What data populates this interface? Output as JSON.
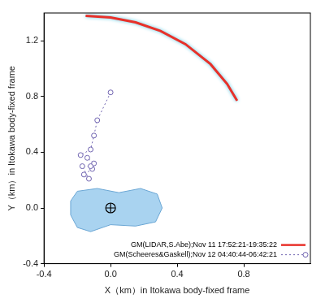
{
  "chart_data": {
    "type": "scatter",
    "x_label": "X（km）in Itokawa body-fixed frame",
    "y_label": "Y（km）in Itokawa body-fixed frame",
    "xlim": [
      -0.4,
      1.2
    ],
    "ylim": [
      -0.4,
      1.4
    ],
    "xticks": [
      -0.4,
      {
        "value": 0,
        "label": "0.0"
      },
      0.4,
      0.8
    ],
    "yticks": [
      -0.4,
      {
        "value": 0,
        "label": "0.0"
      },
      0.4,
      0.8,
      1.2
    ],
    "grid": false,
    "legend": "lower right",
    "series": [
      {
        "name": "GM(LIDAR,S.Abe);Nov 11 17:52:21-19:35:22",
        "color": "#e8312a",
        "marker": "none",
        "line_style": "solid",
        "x": [
          -0.15,
          0.0,
          0.15,
          0.3,
          0.45,
          0.6,
          0.7,
          0.76
        ],
        "values": [
          1.38,
          1.368,
          1.333,
          1.271,
          1.176,
          1.033,
          0.891,
          0.77
        ]
      },
      {
        "name": "GM(Scheeres&Gaskell);Nov 12 04:40:44-06:42:21",
        "color": "#6f63b0",
        "marker": "circle",
        "line_style": "dotted",
        "x": [
          0.0,
          -0.08,
          -0.1,
          -0.12,
          -0.18,
          -0.14,
          -0.1,
          -0.11,
          -0.16,
          -0.13,
          -0.17,
          -0.12
        ],
        "values": [
          0.83,
          0.63,
          0.52,
          0.42,
          0.38,
          0.36,
          0.32,
          0.28,
          0.24,
          0.21,
          0.3,
          0.3
        ]
      }
    ],
    "outline": {
      "x": [
        -0.24,
        -0.2,
        -0.08,
        0.05,
        0.18,
        0.28,
        0.31,
        0.27,
        0.15,
        0.0,
        -0.12,
        -0.2,
        -0.24
      ],
      "values": [
        0.05,
        0.12,
        0.14,
        0.11,
        0.14,
        0.1,
        0.0,
        -0.1,
        -0.13,
        -0.12,
        -0.17,
        -0.14,
        -0.05
      ],
      "color": "#a9d3f0"
    },
    "center": [
      0,
      0
    ]
  }
}
